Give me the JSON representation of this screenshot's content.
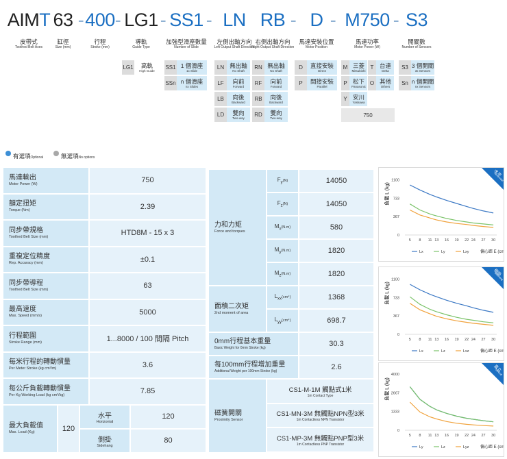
{
  "model": [
    {
      "parts": [
        {
          "text": "AIM",
          "color": "#222222"
        },
        {
          "text": "T",
          "color": "#1b6fc2"
        }
      ],
      "label": "皮帶式",
      "label_en": "Toothed Belt Axes"
    },
    {
      "parts": [
        {
          "text": "63",
          "color": "#222222"
        }
      ],
      "label": "缸徑",
      "label_en": "Size (mm)"
    },
    {
      "parts": [
        {
          "text": "-",
          "color": "#8fb1d3"
        }
      ]
    },
    {
      "parts": [
        {
          "text": "400",
          "color": "#1b6fc2"
        }
      ],
      "label": "行程",
      "label_en": "Stroke (mm)"
    },
    {
      "parts": [
        {
          "text": "-",
          "color": "#8fb1d3"
        }
      ]
    },
    {
      "parts": [
        {
          "text": "LG1",
          "color": "#222222"
        }
      ],
      "label": "導軌",
      "label_en": "Guide Type"
    },
    {
      "parts": [
        {
          "text": "-",
          "color": "#8fb1d3"
        }
      ]
    },
    {
      "parts": [
        {
          "text": "SS1",
          "color": "#1b6fc2"
        }
      ],
      "label": "加強型滑座數量",
      "label_en": "Number of Slide"
    },
    {
      "parts": [
        {
          "text": "-",
          "color": "#8fb1d3"
        }
      ]
    },
    {
      "parts": [
        {
          "text": "LN",
          "color": "#1b6fc2"
        }
      ],
      "label": "左側出軸方向",
      "label_en": "Left Output Shaft Direction"
    },
    {
      "parts": [
        {
          "text": "RB",
          "color": "#1b6fc2"
        }
      ],
      "label": "右側出軸方向",
      "label_en": "Right Output Shaft Direction"
    },
    {
      "parts": [
        {
          "text": "-",
          "color": "#8fb1d3"
        }
      ]
    },
    {
      "parts": [
        {
          "text": "D",
          "color": "#1b6fc2"
        }
      ],
      "label": "馬達安裝位置",
      "label_en": "Motor Position"
    },
    {
      "parts": [
        {
          "text": "-",
          "color": "#8fb1d3"
        }
      ]
    },
    {
      "parts": [
        {
          "text": "M750",
          "color": "#1b6fc2"
        }
      ],
      "label": "馬達功率",
      "label_en": "Motor Power (W)"
    },
    {
      "parts": [
        {
          "text": "-",
          "color": "#8fb1d3"
        }
      ]
    },
    {
      "parts": [
        {
          "text": "S3",
          "color": "#1b6fc2"
        }
      ],
      "label": "開關數",
      "label_en": "Number of Sensors"
    }
  ],
  "options": [
    {
      "optional": false,
      "items": [
        {
          "code": "LG1",
          "zh": "高軌",
          "en": "High Guide"
        }
      ]
    },
    {
      "optional": true,
      "items": [
        {
          "code": "SS1",
          "zh": "1 個滑座",
          "en": "1x Slide"
        },
        {
          "code": "SSn",
          "zh": "n 個滑座",
          "en": "nx Slides"
        }
      ]
    },
    {
      "optional": true,
      "items": [
        {
          "code": "LN",
          "zh": "無出軸",
          "en": "No Shaft"
        },
        {
          "code": "LF",
          "zh": "向前",
          "en": "Forward"
        },
        {
          "code": "LB",
          "zh": "向後",
          "en": "Backward"
        },
        {
          "code": "LD",
          "zh": "雙向",
          "en": "Two-way"
        }
      ]
    },
    {
      "optional": true,
      "items": [
        {
          "code": "RN",
          "zh": "無出軸",
          "en": "No Shaft"
        },
        {
          "code": "RF",
          "zh": "向前",
          "en": "Forward"
        },
        {
          "code": "RB",
          "zh": "向後",
          "en": "Backward"
        },
        {
          "code": "RD",
          "zh": "雙向",
          "en": "Two-way"
        }
      ]
    },
    {
      "optional": true,
      "items": [
        {
          "code": "D",
          "zh": "直接安裝",
          "en": "Direct"
        },
        {
          "code": "P",
          "zh": "間接安裝",
          "en": "Parallel"
        }
      ]
    },
    {
      "optional": true,
      "columns": 2,
      "value": 750,
      "items": [
        {
          "code": "M",
          "zh": "三菱",
          "en": "Mitsubishi"
        },
        {
          "code": "T",
          "zh": "台達",
          "en": "Delta"
        },
        {
          "code": "P",
          "zh": "松下",
          "en": "Panasonic"
        },
        {
          "code": "O",
          "zh": "其他",
          "en": "Others"
        },
        {
          "code": "Y",
          "zh": "安川",
          "en": "Yaskawa"
        }
      ]
    },
    {
      "optional": true,
      "items": [
        {
          "code": "S3",
          "zh": "3 個開關",
          "en": "3x Sensors"
        },
        {
          "code": "Sn",
          "zh": "n 個開關",
          "en": "nx Sensors"
        }
      ]
    }
  ],
  "legend": [
    {
      "zh": "有選項",
      "en": "Optional",
      "color": "#3d8fd6"
    },
    {
      "zh": "無選項",
      "en": "No options",
      "color": "#a8a8a8"
    }
  ],
  "spec_left": [
    {
      "zh": "馬達輸出",
      "en": "Motor Power (W)",
      "value": 750
    },
    {
      "zh": "額定扭矩",
      "en": "Torque (Nm)",
      "value": 2.39
    },
    {
      "zh": "同步帶規格",
      "en": "Toothed Belt Size (mm)",
      "value": "HTD8M - 15 x 3"
    },
    {
      "zh": "重複定位精度",
      "en": "Rep. Accuracy (mm)",
      "value": "±0.1"
    },
    {
      "zh": "同步帶導程",
      "en": "Toothed Belt Size (mm)",
      "value": 63
    },
    {
      "zh": "最高速度",
      "en": "Max. Speed (mm/s)",
      "value": 5000
    },
    {
      "zh": "行程範圍",
      "en": "Stroke Range (mm)",
      "value": "1...8000 / 100 間隔 Pitch"
    },
    {
      "zh": "每米行程的轉動慣量",
      "en": "Per Meter Stroke (kg cm²/m)",
      "value": 3.6
    },
    {
      "zh": "每公斤負載轉動慣量",
      "en": "Per Kg Working Load (kg cm²/kg)",
      "value": 7.85
    },
    {
      "zh": "最大負載值",
      "en": "Max. Load (Kg)",
      "value": 120,
      "sub": [
        {
          "zh": "水平",
          "en": "Horizontal",
          "value": 120
        },
        {
          "zh": "側掛",
          "en": "Sidehang",
          "value": 80
        }
      ]
    }
  ],
  "spec_mid": {
    "force": {
      "zh": "力和力矩",
      "en": "Force and torques",
      "rows": [
        {
          "sym": "F",
          "sub": "y",
          "unit": "(N)",
          "value": 14050
        },
        {
          "sym": "F",
          "sub": "z",
          "unit": "(N)",
          "value": 14050
        },
        {
          "sym": "M",
          "sub": "x",
          "unit": "(N.m)",
          "value": 580
        },
        {
          "sym": "M",
          "sub": "y",
          "unit": "(N.m)",
          "value": 1820
        },
        {
          "sym": "M",
          "sub": "z",
          "unit": "(N.m)",
          "value": 1820
        }
      ]
    },
    "area": {
      "zh": "面積二次矩",
      "en": "2nd moment of area",
      "rows": [
        {
          "sym": "L",
          "sub": "xx",
          "unit": "(cm⁴)",
          "value": 1368
        },
        {
          "sym": "L",
          "sub": "yy",
          "unit": "(cm⁴)",
          "value": 698.7
        }
      ]
    },
    "weights": [
      {
        "zh": "0mm行程基本重量",
        "en": "Basic Weight for 0mm Stroke (kg)",
        "value": 30.3
      },
      {
        "zh": "每100mm行程增加重量",
        "en": "Additional Weight per 100mm Stroke (kg)",
        "value": 2.6
      }
    ],
    "sensor": {
      "zh": "磁簧開關",
      "en": "Proximity Sensor",
      "items": [
        {
          "name": "CS1-M-1M 觸點式1米",
          "en": "1m Contact Type"
        },
        {
          "name": "CS1-MN-3M 無觸點NPN型3米",
          "en": "1m Contactless NPN Transistor"
        },
        {
          "name": "CS1-MP-3M 無觸點PNP型3米",
          "en": "1m Contactless PNP Transistor"
        }
      ]
    }
  },
  "chart_data": [
    {
      "type": "line",
      "badge": "水平",
      "badge_en": "Horizontal",
      "ylabel": "負載 L (kg)",
      "xlabel": "偏心距 E (cm)",
      "x": [
        5,
        8,
        11,
        13,
        16,
        19,
        22,
        24,
        27,
        30
      ],
      "xlim": [
        3.5,
        31
      ],
      "xticks": [
        5,
        8,
        11,
        13,
        16,
        19,
        22,
        24,
        27,
        30
      ],
      "ylim": [
        0,
        1150
      ],
      "yticks": [
        0,
        367,
        733,
        1100
      ],
      "series": [
        {
          "name": "Lx",
          "color": "#3b78c4",
          "values": [
            1000,
            900,
            810,
            760,
            690,
            630,
            570,
            530,
            480,
            440
          ]
        },
        {
          "name": "Ly",
          "color": "#7cc36a",
          "values": [
            620,
            500,
            420,
            380,
            330,
            290,
            260,
            240,
            220,
            200
          ]
        },
        {
          "name": "Lxy",
          "color": "#f0a13a",
          "values": [
            500,
            400,
            340,
            300,
            260,
            230,
            210,
            190,
            170,
            150
          ]
        }
      ]
    },
    {
      "type": "line",
      "badge": "側掛",
      "badge_en": "Sidehang",
      "ylabel": "負載 L (kg)",
      "xlabel": "偏心距 E (cm)",
      "x": [
        5,
        8,
        11,
        13,
        16,
        19,
        22,
        24,
        27,
        30
      ],
      "xlim": [
        3.5,
        31
      ],
      "xticks": [
        5,
        8,
        11,
        13,
        16,
        19,
        22,
        24,
        27,
        30
      ],
      "ylim": [
        0,
        1150
      ],
      "yticks": [
        0,
        367,
        733,
        1100
      ],
      "series": [
        {
          "name": "Lx",
          "color": "#3b78c4",
          "values": [
            1000,
            890,
            800,
            750,
            680,
            620,
            570,
            530,
            480,
            440
          ]
        },
        {
          "name": "Lz",
          "color": "#7cc36a",
          "values": [
            750,
            600,
            500,
            450,
            390,
            340,
            300,
            280,
            250,
            230
          ]
        },
        {
          "name": "Lxz",
          "color": "#f0a13a",
          "values": [
            620,
            490,
            410,
            360,
            310,
            270,
            240,
            220,
            200,
            180
          ]
        }
      ]
    },
    {
      "type": "line",
      "badge": "直立",
      "badge_en": "Vertical",
      "ylabel": "負載 L (kg)",
      "xlabel": "偏心距 E (cm)",
      "x": [
        5,
        8,
        11,
        13,
        16,
        19,
        22,
        24,
        27,
        30
      ],
      "xlim": [
        3.5,
        31
      ],
      "xticks": [
        5,
        8,
        11,
        13,
        16,
        19,
        22,
        24,
        27,
        30
      ],
      "ylim": [
        0,
        4100
      ],
      "yticks": [
        0,
        1333,
        2667,
        4000
      ],
      "series": [
        {
          "name": "Ly",
          "color": "#3b78c4",
          "values": [
            3100,
            2200,
            1700,
            1450,
            1200,
            1000,
            850,
            780,
            680,
            600
          ]
        },
        {
          "name": "Lz",
          "color": "#7cc36a",
          "values": [
            3100,
            2200,
            1700,
            1450,
            1200,
            1000,
            850,
            780,
            680,
            600
          ]
        },
        {
          "name": "Lyz",
          "color": "#f0a13a",
          "values": [
            2000,
            1300,
            950,
            800,
            620,
            500,
            420,
            380,
            330,
            300
          ]
        }
      ]
    }
  ]
}
